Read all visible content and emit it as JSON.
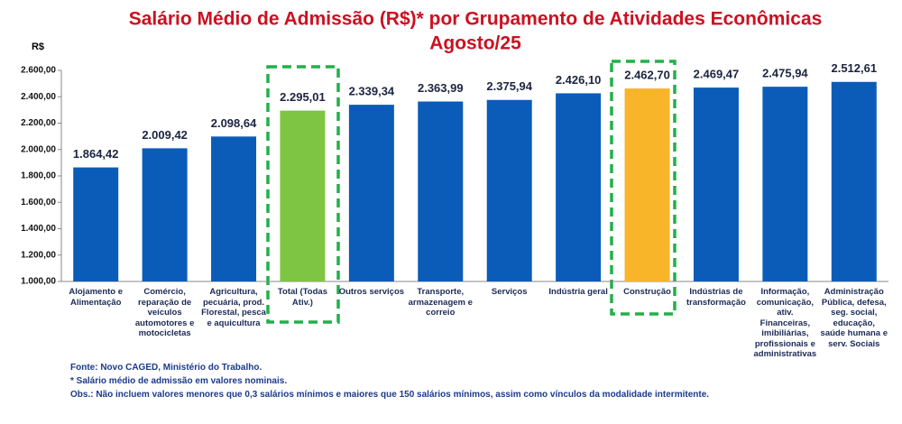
{
  "chart_data": {
    "type": "bar",
    "title": "Salário Médio de Admissão (R$)* por Grupamento de Atividades Econômicas",
    "subtitle": "Agosto/25",
    "y_label": "R$",
    "categories": [
      "Alojamento e Alimentação",
      "Comércio, reparação de veículos automotores e motocicletas",
      "Agricultura, pecuária, prod. Florestal, pesca e aquicultura",
      "Total (Todas Ativ.)",
      "Outros serviços",
      "Transporte, armazenagem e correio",
      "Serviços",
      "Indústria geral",
      "Construção",
      "Indústrias de transformação",
      "Informação, comunicação, ativ. Financeiras, imibiliárias, profissionais e administrativas",
      "Administração Pública, defesa, seg. social, educação, saúde humana e serv. Sociais"
    ],
    "values": [
      1864.42,
      2009.42,
      2098.64,
      2295.01,
      2339.34,
      2363.99,
      2375.94,
      2426.1,
      2462.7,
      2469.47,
      2475.94,
      2512.61
    ],
    "value_labels": [
      "1.864,42",
      "2.009,42",
      "2.098,64",
      "2.295,01",
      "2.339,34",
      "2.363,99",
      "2.375,94",
      "2.426,10",
      "2.462,70",
      "2.469,47",
      "2.475,94",
      "2.512,61"
    ],
    "colors": [
      "#0b5cb8",
      "#0b5cb8",
      "#0b5cb8",
      "#7ec544",
      "#0b5cb8",
      "#0b5cb8",
      "#0b5cb8",
      "#0b5cb8",
      "#f9b52a",
      "#0b5cb8",
      "#0b5cb8",
      "#0b5cb8"
    ],
    "ylim": [
      1000,
      2600
    ],
    "yticks": [
      {
        "value": 1000,
        "label": "1.000,00"
      },
      {
        "value": 1200,
        "label": "1.200,00"
      },
      {
        "value": 1400,
        "label": "1.400,00"
      },
      {
        "value": 1600,
        "label": "1.600,00"
      },
      {
        "value": 1800,
        "label": "1.800,00"
      },
      {
        "value": 2000,
        "label": "2.000,00"
      },
      {
        "value": 2200,
        "label": "2.200,00"
      },
      {
        "value": 2400,
        "label": "2.400,00"
      },
      {
        "value": 2600,
        "label": "2.600,00"
      }
    ],
    "grid": false,
    "notes": [
      "Fonte: Novo CAGED, Ministério do Trabalho.",
      "* Salário médio de admissão em valores nominais.",
      "Obs.: Não incluem valores menores que 0,3 salários mínimos e maiores que 150 salários mínimos, assim como vínculos da modalidade intermitente."
    ]
  }
}
